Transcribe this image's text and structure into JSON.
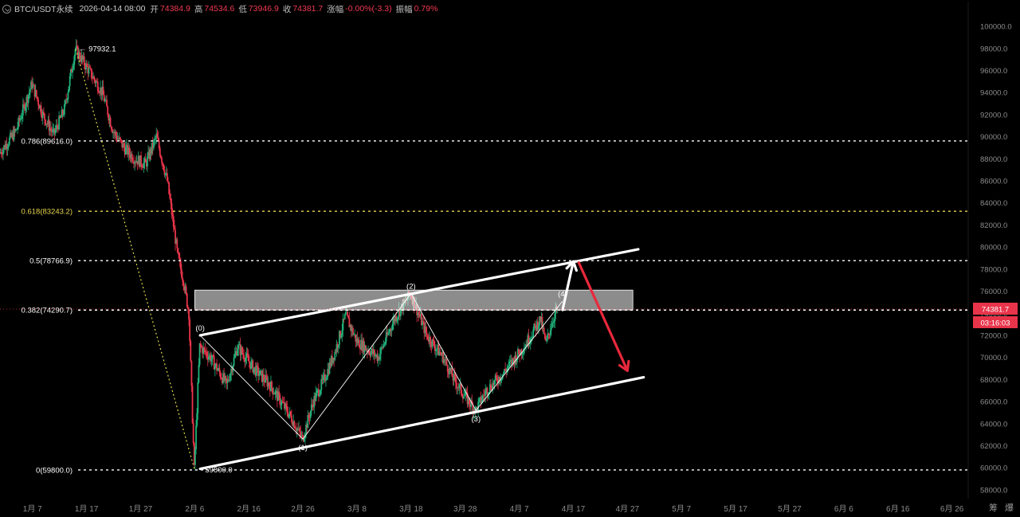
{
  "header": {
    "symbol": "BTC/USDT永续",
    "datetime": "2026-04-14 08:00",
    "open_label": "开",
    "open": "74384.9",
    "high_label": "高",
    "high": "74534.6",
    "low_label": "低",
    "low": "73946.9",
    "close_label": "收",
    "close": "74381.7",
    "change_label": "涨幅",
    "change": "-0.00%(-3.3)",
    "amplitude_label": "振幅",
    "amplitude": "0.79%"
  },
  "footer": {
    "btn1": "筹",
    "btn2": "爆"
  },
  "colors": {
    "background": "#000000",
    "up": "#20b27a",
    "down": "#e8344a",
    "fib_white": "#ffffff",
    "fib_gold": "#e8d44d",
    "swing_line": "#e0d84a",
    "arrow_down": "#e8283c",
    "price_tag": "#e8344a"
  },
  "chart_data": {
    "type": "candlestick",
    "title": "BTC/USDT永续",
    "ylim": [
      57200,
      100800
    ],
    "x_range": [
      "2026-01-01",
      "2026-06-29"
    ],
    "y_ticks": [
      "100000.0",
      "98000.0",
      "96000.0",
      "94000.0",
      "92000.0",
      "90000.0",
      "88000.0",
      "86000.0",
      "84000.0",
      "82000.0",
      "80000.0",
      "78000.0",
      "76000.0",
      "74000.0",
      "72000.0",
      "70000.0",
      "68000.0",
      "66000.0",
      "64000.0",
      "62000.0",
      "60000.0",
      "58000.0"
    ],
    "x_ticks": [
      {
        "label": "1月 7",
        "date": "2026-01-07"
      },
      {
        "label": "1月 17",
        "date": "2026-01-17"
      },
      {
        "label": "1月 27",
        "date": "2026-01-27"
      },
      {
        "label": "2月 6",
        "date": "2026-02-06"
      },
      {
        "label": "2月 16",
        "date": "2026-02-16"
      },
      {
        "label": "2月 26",
        "date": "2026-02-26"
      },
      {
        "label": "3月 8",
        "date": "2026-03-08"
      },
      {
        "label": "3月 18",
        "date": "2026-03-18"
      },
      {
        "label": "3月 28",
        "date": "2026-03-28"
      },
      {
        "label": "4月 7",
        "date": "2026-04-07"
      },
      {
        "label": "4月 17",
        "date": "2026-04-17"
      },
      {
        "label": "4月 27",
        "date": "2026-04-27"
      },
      {
        "label": "5月 7",
        "date": "2026-05-07"
      },
      {
        "label": "5月 17",
        "date": "2026-05-17"
      },
      {
        "label": "5月 27",
        "date": "2026-05-27"
      },
      {
        "label": "6月 6",
        "date": "2026-06-06"
      },
      {
        "label": "6月 16",
        "date": "2026-06-16"
      },
      {
        "label": "6月 26",
        "date": "2026-06-26"
      }
    ],
    "price_path": [
      [
        "2026-01-01",
        88500
      ],
      [
        "2026-01-04",
        90500
      ],
      [
        "2026-01-07",
        94800
      ],
      [
        "2026-01-09",
        92000
      ],
      [
        "2026-01-11",
        90200
      ],
      [
        "2026-01-13",
        92500
      ],
      [
        "2026-01-15",
        97932.1
      ],
      [
        "2026-01-18",
        95600
      ],
      [
        "2026-01-20",
        94000
      ],
      [
        "2026-01-22",
        90500
      ],
      [
        "2026-01-24",
        89000
      ],
      [
        "2026-01-26",
        88000
      ],
      [
        "2026-01-28",
        87500
      ],
      [
        "2026-01-30",
        90000
      ],
      [
        "2026-02-01",
        86000
      ],
      [
        "2026-02-02",
        82500
      ],
      [
        "2026-02-03",
        79000
      ],
      [
        "2026-02-04",
        77000
      ],
      [
        "2026-02-05",
        74000
      ],
      [
        "2026-02-06",
        59800
      ],
      [
        "2026-02-07",
        71000
      ],
      [
        "2026-02-09",
        70000
      ],
      [
        "2026-02-12",
        67500
      ],
      [
        "2026-02-14",
        71000
      ],
      [
        "2026-02-17",
        69000
      ],
      [
        "2026-02-20",
        67500
      ],
      [
        "2026-02-24",
        64500
      ],
      [
        "2026-02-26",
        62600
      ],
      [
        "2026-02-28",
        66000
      ],
      [
        "2026-03-02",
        68000
      ],
      [
        "2026-03-04",
        70500
      ],
      [
        "2026-03-06",
        73800
      ],
      [
        "2026-03-08",
        71500
      ],
      [
        "2026-03-12",
        70000
      ],
      [
        "2026-03-15",
        73500
      ],
      [
        "2026-03-18",
        75800
      ],
      [
        "2026-03-21",
        72000
      ],
      [
        "2026-03-24",
        70000
      ],
      [
        "2026-03-26",
        68000
      ],
      [
        "2026-03-28",
        66500
      ],
      [
        "2026-03-30",
        65200
      ],
      [
        "2026-04-01",
        67000
      ],
      [
        "2026-04-04",
        68500
      ],
      [
        "2026-04-08",
        71000
      ],
      [
        "2026-04-11",
        73500
      ],
      [
        "2026-04-12",
        71200
      ],
      [
        "2026-04-13",
        73000
      ],
      [
        "2026-04-14",
        74381.7
      ]
    ],
    "swing_line": [
      [
        "2026-01-15",
        97932.1
      ],
      [
        "2026-02-06",
        59800
      ]
    ],
    "fib_levels": [
      {
        "label": "0.786(89616.0)",
        "price": 89616.0,
        "color": "white"
      },
      {
        "label": "0.618(83243.2)",
        "price": 83243.2,
        "color": "gold"
      },
      {
        "label": "0.5(78766.9)",
        "price": 78766.9,
        "color": "white"
      },
      {
        "label": "0.382(74290.7)",
        "price": 74290.7,
        "color": "white"
      },
      {
        "label": "0(59800.0)",
        "price": 59800.0,
        "color": "white"
      }
    ],
    "annotations": {
      "high_label": "97932.1",
      "low_label": "59800.0",
      "current_price": "74381.7",
      "countdown": "03:16:03"
    },
    "channel_upper": [
      [
        "2026-02-07",
        72000
      ],
      [
        "2026-04-29",
        79800
      ]
    ],
    "channel_lower": [
      [
        "2026-02-07",
        59900
      ],
      [
        "2026-04-30",
        68200
      ]
    ],
    "zone": {
      "from": "2026-02-06",
      "to": "2026-04-28",
      "low": 74300,
      "high": 76100
    },
    "wave_points": [
      {
        "label": "(0)",
        "date": "2026-02-07",
        "price": 72000
      },
      {
        "label": "(1)",
        "date": "2026-02-26",
        "price": 62600
      },
      {
        "label": "(2)",
        "date": "2026-03-18",
        "price": 75800
      },
      {
        "label": "(3)",
        "date": "2026-03-30",
        "price": 65200
      },
      {
        "label": "(4)",
        "date": "2026-04-15",
        "price": 75100
      }
    ],
    "arrow_up": {
      "from": [
        "2026-04-15",
        74300
      ],
      "to": [
        "2026-04-17",
        78700
      ]
    },
    "arrow_down": {
      "from": [
        "2026-04-18",
        78600
      ],
      "to": [
        "2026-04-27",
        68800
      ]
    }
  }
}
